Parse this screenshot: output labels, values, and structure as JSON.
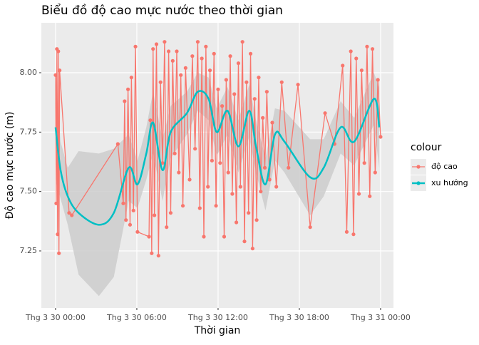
{
  "chart_data": {
    "type": "line",
    "title": "Biểu đồ độ cao mực nước theo thời gian",
    "x_label": "Thời gian",
    "y_label": "Độ cao mực nước (m)",
    "legend_title": "colour",
    "legend_position": "right",
    "grid": true,
    "xlim": [
      -1.05,
      24.95
    ],
    "ylim": [
      7.01,
      8.21
    ],
    "xticks": [
      {
        "value": 0,
        "label": "Thg 3 30 00:00"
      },
      {
        "value": 6,
        "label": "Thg 3 30 06:00"
      },
      {
        "value": 12,
        "label": "Thg 3 30 12:00"
      },
      {
        "value": 18,
        "label": "Thg 3 30 18:00"
      },
      {
        "value": 24,
        "label": "Thg 3 31 00:00"
      }
    ],
    "yticks": [
      {
        "value": 7.25,
        "label": "7.25"
      },
      {
        "value": 7.5,
        "label": "7.50"
      },
      {
        "value": 7.75,
        "label": "7.75"
      },
      {
        "value": 8,
        "label": "8.00"
      }
    ],
    "series": [
      {
        "name": "độ cao",
        "color": "#F8766D",
        "style": "line-points",
        "x": [
          0,
          0.05,
          0.1,
          0.15,
          0.2,
          0.25,
          0.3,
          1.0,
          1.2,
          4.6,
          5.0,
          5.1,
          5.2,
          5.35,
          5.5,
          5.6,
          5.75,
          5.9,
          6.05,
          6.9,
          7.0,
          7.1,
          7.2,
          7.3,
          7.45,
          7.6,
          7.75,
          7.9,
          8.05,
          8.2,
          8.35,
          8.5,
          8.65,
          8.8,
          8.95,
          9.1,
          9.25,
          9.4,
          9.6,
          9.9,
          10.1,
          10.3,
          10.5,
          10.65,
          10.8,
          10.95,
          11.1,
          11.25,
          11.4,
          11.55,
          11.7,
          11.85,
          12.0,
          12.15,
          12.3,
          12.45,
          12.6,
          12.75,
          12.9,
          13.05,
          13.2,
          13.35,
          13.5,
          13.65,
          13.8,
          13.95,
          14.1,
          14.25,
          14.4,
          14.55,
          14.7,
          14.85,
          15.0,
          15.15,
          15.3,
          15.45,
          15.6,
          15.8,
          16.0,
          16.3,
          16.7,
          17.2,
          17.9,
          18.8,
          19.9,
          20.6,
          21.2,
          21.5,
          21.8,
          22.0,
          22.2,
          22.4,
          22.6,
          22.8,
          23.0,
          23.2,
          23.4,
          23.6,
          23.8,
          24.0
        ],
        "values": [
          7.99,
          7.45,
          8.1,
          7.32,
          8.09,
          7.24,
          8.01,
          7.41,
          7.4,
          7.7,
          7.45,
          7.88,
          7.38,
          7.93,
          7.36,
          7.98,
          7.42,
          8.11,
          7.33,
          7.31,
          7.8,
          7.24,
          8.1,
          7.4,
          8.12,
          7.23,
          7.96,
          7.62,
          8.13,
          7.35,
          8.09,
          7.41,
          8.05,
          7.66,
          8.09,
          7.58,
          7.99,
          7.44,
          8.02,
          7.55,
          8.07,
          7.68,
          8.13,
          7.43,
          8.06,
          7.31,
          8.11,
          7.52,
          8.01,
          7.63,
          8.08,
          7.44,
          7.93,
          7.62,
          7.86,
          7.31,
          7.97,
          7.58,
          8.07,
          7.49,
          7.91,
          7.37,
          8.04,
          7.52,
          8.13,
          7.29,
          7.96,
          7.41,
          8.08,
          7.26,
          7.89,
          7.38,
          7.98,
          7.5,
          7.81,
          7.6,
          7.92,
          7.55,
          7.79,
          7.52,
          7.96,
          7.6,
          7.95,
          7.35,
          7.83,
          7.7,
          8.03,
          7.33,
          8.09,
          7.32,
          8.06,
          7.49,
          8.01,
          7.62,
          8.11,
          7.48,
          8.1,
          7.58,
          7.97,
          7.73
        ]
      },
      {
        "name": "xu hướng",
        "color": "#00BFC4",
        "style": "smooth",
        "ribbon_color": "#cccccc",
        "x": [
          0,
          0.37,
          0.9,
          1.7,
          3.2,
          4.3,
          5.4,
          6.05,
          6.7,
          7.2,
          7.9,
          8.5,
          9.7,
          10.5,
          11.3,
          11.9,
          12.7,
          13.5,
          14.3,
          14.8,
          15.5,
          16.2,
          16.9,
          18.8,
          19.8,
          21.05,
          22.05,
          23.5,
          23.9
        ],
        "values": [
          7.77,
          7.59,
          7.48,
          7.41,
          7.36,
          7.41,
          7.6,
          7.53,
          7.66,
          7.79,
          7.59,
          7.75,
          7.83,
          7.92,
          7.89,
          7.75,
          7.84,
          7.69,
          7.84,
          7.69,
          7.53,
          7.74,
          7.71,
          7.56,
          7.6,
          7.77,
          7.71,
          7.89,
          7.77
        ],
        "lower": [
          7.55,
          7.47,
          7.36,
          7.15,
          7.06,
          7.14,
          7.46,
          7.43,
          7.55,
          7.66,
          7.46,
          7.64,
          7.74,
          7.84,
          7.8,
          7.65,
          7.74,
          7.58,
          7.73,
          7.58,
          7.42,
          7.63,
          7.58,
          7.4,
          7.48,
          7.66,
          7.61,
          7.78,
          7.6
        ],
        "upper": [
          7.99,
          7.71,
          7.6,
          7.67,
          7.66,
          7.68,
          7.74,
          7.63,
          7.77,
          7.92,
          7.72,
          7.86,
          7.92,
          8.0,
          7.98,
          7.85,
          7.94,
          7.8,
          7.95,
          7.8,
          7.64,
          7.85,
          7.84,
          7.72,
          7.72,
          7.88,
          7.81,
          8.0,
          7.94
        ]
      }
    ]
  }
}
